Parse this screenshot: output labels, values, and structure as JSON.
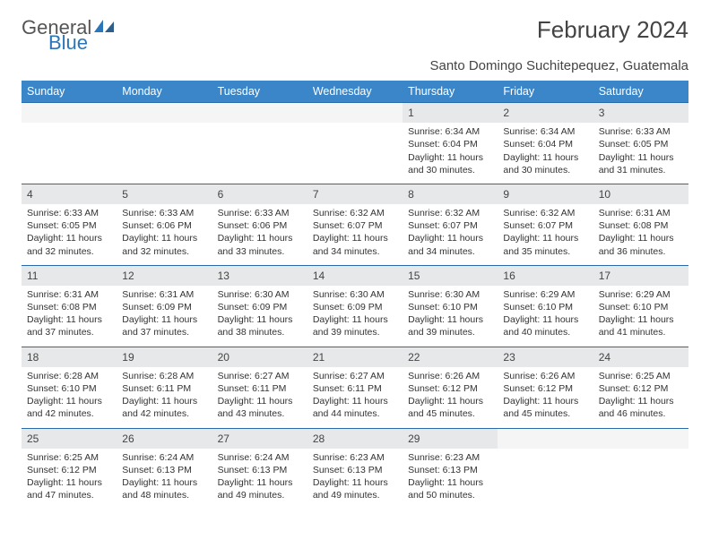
{
  "logo": {
    "text_general": "General",
    "text_blue": "Blue"
  },
  "header": {
    "month_title": "February 2024",
    "location": "Santo Domingo Suchitepequez, Guatemala"
  },
  "colors": {
    "header_bg": "#3a86c8",
    "header_text": "#ffffff",
    "daynum_bg": "#e7e8e9",
    "row_border": "#2a6aa8"
  },
  "days_of_week": [
    "Sunday",
    "Monday",
    "Tuesday",
    "Wednesday",
    "Thursday",
    "Friday",
    "Saturday"
  ],
  "weeks": [
    [
      null,
      null,
      null,
      null,
      {
        "n": "1",
        "sr": "6:34 AM",
        "ss": "6:04 PM",
        "dl": "11 hours and 30 minutes."
      },
      {
        "n": "2",
        "sr": "6:34 AM",
        "ss": "6:04 PM",
        "dl": "11 hours and 30 minutes."
      },
      {
        "n": "3",
        "sr": "6:33 AM",
        "ss": "6:05 PM",
        "dl": "11 hours and 31 minutes."
      }
    ],
    [
      {
        "n": "4",
        "sr": "6:33 AM",
        "ss": "6:05 PM",
        "dl": "11 hours and 32 minutes."
      },
      {
        "n": "5",
        "sr": "6:33 AM",
        "ss": "6:06 PM",
        "dl": "11 hours and 32 minutes."
      },
      {
        "n": "6",
        "sr": "6:33 AM",
        "ss": "6:06 PM",
        "dl": "11 hours and 33 minutes."
      },
      {
        "n": "7",
        "sr": "6:32 AM",
        "ss": "6:07 PM",
        "dl": "11 hours and 34 minutes."
      },
      {
        "n": "8",
        "sr": "6:32 AM",
        "ss": "6:07 PM",
        "dl": "11 hours and 34 minutes."
      },
      {
        "n": "9",
        "sr": "6:32 AM",
        "ss": "6:07 PM",
        "dl": "11 hours and 35 minutes."
      },
      {
        "n": "10",
        "sr": "6:31 AM",
        "ss": "6:08 PM",
        "dl": "11 hours and 36 minutes."
      }
    ],
    [
      {
        "n": "11",
        "sr": "6:31 AM",
        "ss": "6:08 PM",
        "dl": "11 hours and 37 minutes."
      },
      {
        "n": "12",
        "sr": "6:31 AM",
        "ss": "6:09 PM",
        "dl": "11 hours and 37 minutes."
      },
      {
        "n": "13",
        "sr": "6:30 AM",
        "ss": "6:09 PM",
        "dl": "11 hours and 38 minutes."
      },
      {
        "n": "14",
        "sr": "6:30 AM",
        "ss": "6:09 PM",
        "dl": "11 hours and 39 minutes."
      },
      {
        "n": "15",
        "sr": "6:30 AM",
        "ss": "6:10 PM",
        "dl": "11 hours and 39 minutes."
      },
      {
        "n": "16",
        "sr": "6:29 AM",
        "ss": "6:10 PM",
        "dl": "11 hours and 40 minutes."
      },
      {
        "n": "17",
        "sr": "6:29 AM",
        "ss": "6:10 PM",
        "dl": "11 hours and 41 minutes."
      }
    ],
    [
      {
        "n": "18",
        "sr": "6:28 AM",
        "ss": "6:10 PM",
        "dl": "11 hours and 42 minutes."
      },
      {
        "n": "19",
        "sr": "6:28 AM",
        "ss": "6:11 PM",
        "dl": "11 hours and 42 minutes."
      },
      {
        "n": "20",
        "sr": "6:27 AM",
        "ss": "6:11 PM",
        "dl": "11 hours and 43 minutes."
      },
      {
        "n": "21",
        "sr": "6:27 AM",
        "ss": "6:11 PM",
        "dl": "11 hours and 44 minutes."
      },
      {
        "n": "22",
        "sr": "6:26 AM",
        "ss": "6:12 PM",
        "dl": "11 hours and 45 minutes."
      },
      {
        "n": "23",
        "sr": "6:26 AM",
        "ss": "6:12 PM",
        "dl": "11 hours and 45 minutes."
      },
      {
        "n": "24",
        "sr": "6:25 AM",
        "ss": "6:12 PM",
        "dl": "11 hours and 46 minutes."
      }
    ],
    [
      {
        "n": "25",
        "sr": "6:25 AM",
        "ss": "6:12 PM",
        "dl": "11 hours and 47 minutes."
      },
      {
        "n": "26",
        "sr": "6:24 AM",
        "ss": "6:13 PM",
        "dl": "11 hours and 48 minutes."
      },
      {
        "n": "27",
        "sr": "6:24 AM",
        "ss": "6:13 PM",
        "dl": "11 hours and 49 minutes."
      },
      {
        "n": "28",
        "sr": "6:23 AM",
        "ss": "6:13 PM",
        "dl": "11 hours and 49 minutes."
      },
      {
        "n": "29",
        "sr": "6:23 AM",
        "ss": "6:13 PM",
        "dl": "11 hours and 50 minutes."
      },
      null,
      null
    ]
  ],
  "labels": {
    "sunrise": "Sunrise: ",
    "sunset": "Sunset: ",
    "daylight": "Daylight: "
  }
}
